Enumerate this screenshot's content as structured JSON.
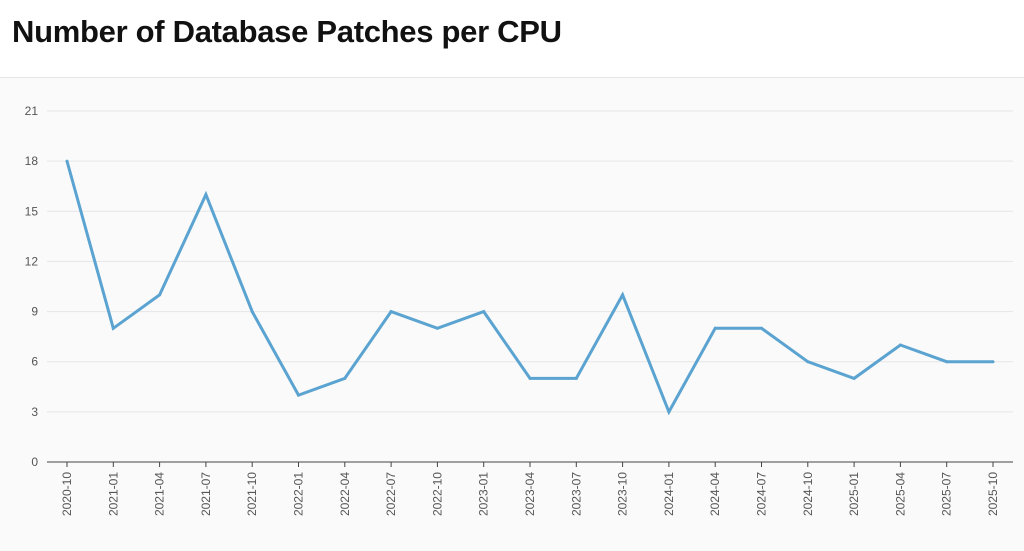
{
  "header": {
    "title": "Number of Database Patches per CPU"
  },
  "colors": {
    "line": "#5ba3d0",
    "grid": "#e6e6e6",
    "axis": "#444444",
    "plot_background": "#fafafa"
  },
  "chart_data": {
    "type": "line",
    "title": "Number of Database Patches per CPU",
    "xlabel": "",
    "ylabel": "",
    "x": [
      "2020-10",
      "2021-01",
      "2021-04",
      "2021-07",
      "2021-10",
      "2022-01",
      "2022-04",
      "2022-07",
      "2022-10",
      "2023-01",
      "2023-04",
      "2023-07",
      "2023-10",
      "2024-01",
      "2024-04",
      "2024-07",
      "2024-10",
      "2025-01",
      "2025-04",
      "2025-07",
      "2025-10"
    ],
    "series": [
      {
        "values": [
          18,
          8,
          10,
          16,
          9,
          4,
          5,
          9,
          8,
          9,
          5,
          5,
          10,
          3,
          8,
          8,
          6,
          5,
          7,
          6,
          6
        ]
      }
    ],
    "ylim": [
      0,
      21
    ],
    "yticks": [
      0,
      3,
      6,
      9,
      12,
      15,
      18,
      21
    ],
    "grid": true,
    "legend": "none"
  }
}
